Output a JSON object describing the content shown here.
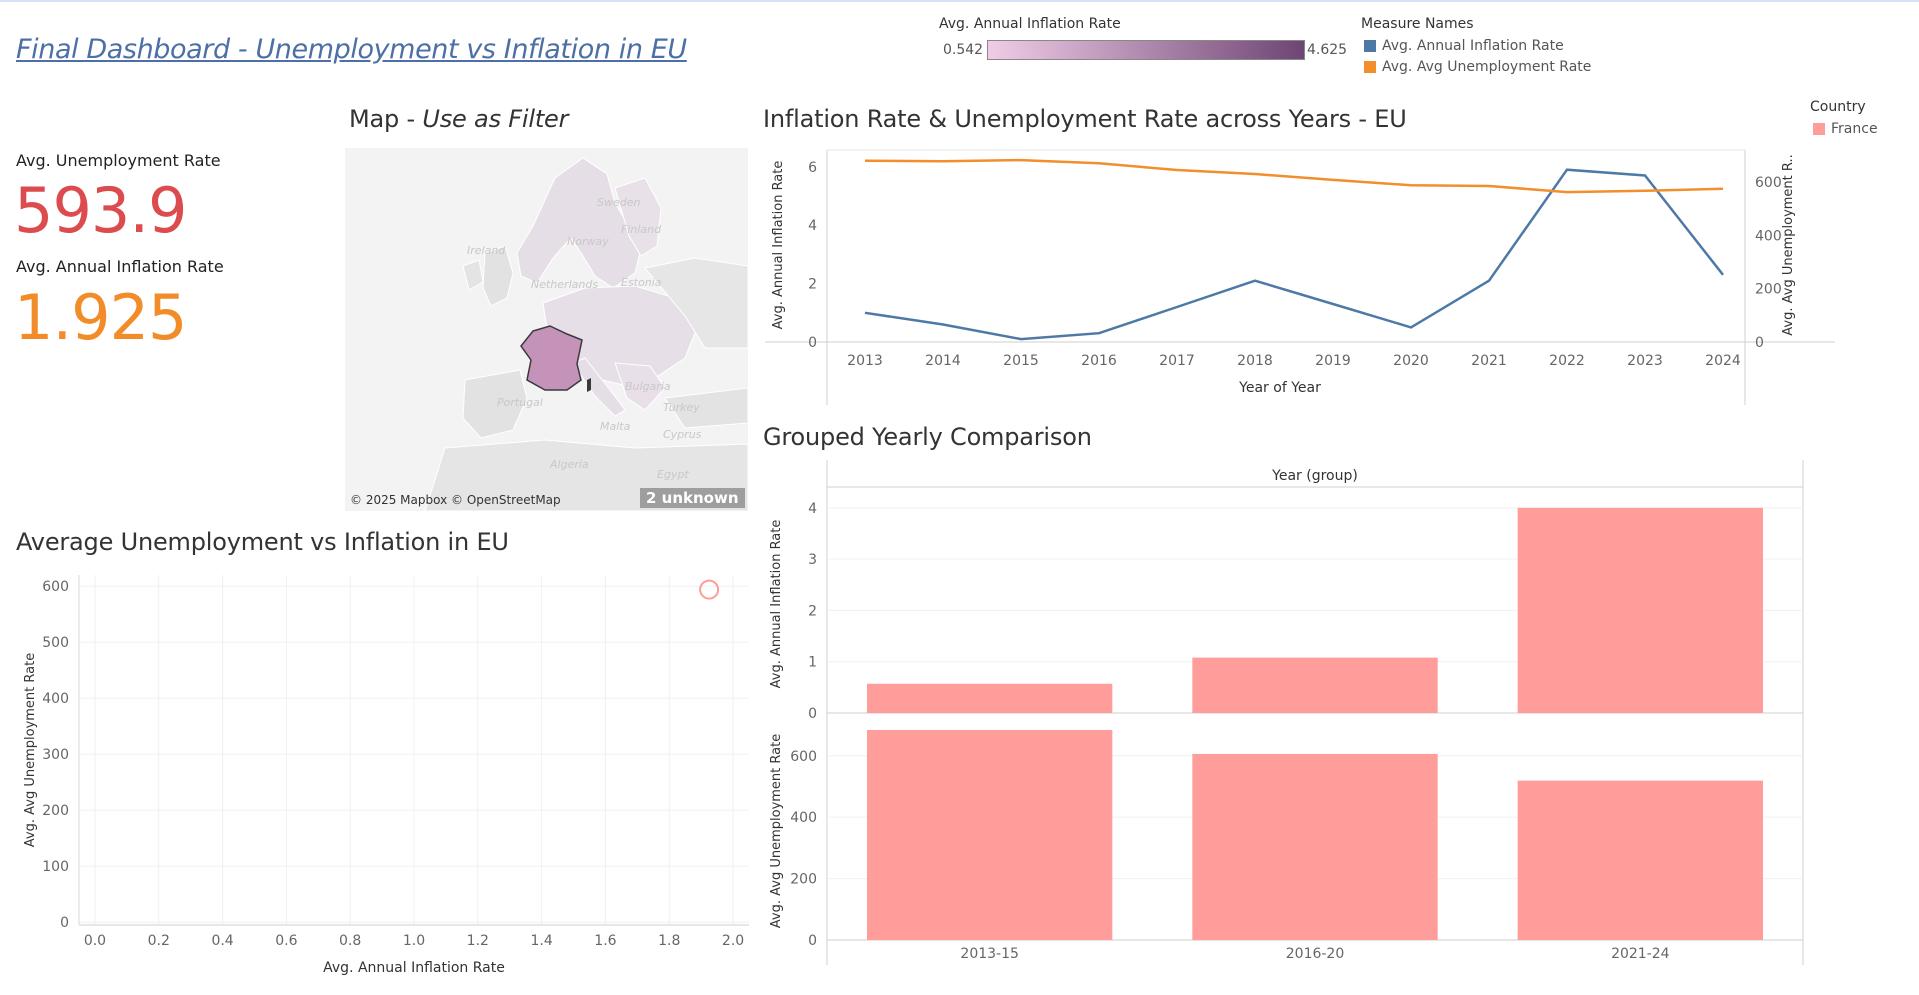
{
  "dashboard": {
    "title": "Final Dashboard - Unemployment vs Inflation in EU"
  },
  "kpis": {
    "unemployment": {
      "label": "Avg. Unemployment Rate",
      "value": "593.9",
      "color": "#dc4c4f"
    },
    "inflation": {
      "label": "Avg. Annual Inflation Rate",
      "value": "1.925",
      "color": "#f28c28"
    }
  },
  "color_legend": {
    "title": "Avg. Annual Inflation Rate",
    "min": "0.542",
    "max": "4.625"
  },
  "measure_legend": {
    "title": "Measure Names",
    "items": [
      {
        "label": "Avg. Annual Inflation Rate",
        "color": "#4e79a7"
      },
      {
        "label": "Avg. Avg Unemployment Rate",
        "color": "#f28e2b"
      }
    ]
  },
  "country_legend": {
    "title": "Country",
    "items": [
      {
        "label": "France",
        "color": "#ff9d9a"
      }
    ]
  },
  "map": {
    "title": "Map",
    "subtitle": "Use as Filter",
    "attribution": "© 2025 Mapbox © OpenStreetMap",
    "unknown_badge": "2 unknown",
    "labels": [
      "Sweden",
      "Finland",
      "Norway",
      "Ireland",
      "Netherlands",
      "Estonia",
      "Portugal",
      "Bulgaria",
      "Turkey",
      "Malta",
      "Cyprus",
      "Algeria",
      "Egypt"
    ]
  },
  "chart_data": [
    {
      "type": "line",
      "title": "Inflation Rate & Unemployment Rate across Years - EU",
      "xlabel": "Year of Year",
      "ylabel_left": "Avg. Annual Inflation Rate",
      "ylabel_right": "Avg. Avg Unemployment R..",
      "x": [
        2013,
        2014,
        2015,
        2016,
        2017,
        2018,
        2019,
        2020,
        2021,
        2022,
        2023,
        2024
      ],
      "ylim_left": [
        0,
        6.3
      ],
      "yticks_left": [
        0,
        2,
        4,
        6
      ],
      "ylim_right": [
        0,
        690
      ],
      "yticks_right": [
        0,
        200,
        400,
        600
      ],
      "series": [
        {
          "name": "Avg. Annual Inflation Rate",
          "axis": "left",
          "color": "#4e79a7",
          "values": [
            1.0,
            0.6,
            0.1,
            0.3,
            1.2,
            2.1,
            1.3,
            0.5,
            2.1,
            5.9,
            5.7,
            2.3
          ]
        },
        {
          "name": "Avg. Avg Unemployment Rate",
          "axis": "right",
          "color": "#f28e2b",
          "values": [
            680,
            678,
            682,
            670,
            645,
            630,
            608,
            588,
            585,
            562,
            567,
            575
          ]
        }
      ],
      "grid": false
    },
    {
      "type": "bar",
      "title": "Grouped Yearly Comparison",
      "header": "Year (group)",
      "categories": [
        "2013-15",
        "2016-20",
        "2021-24"
      ],
      "color": "#ff9d9a",
      "panels": [
        {
          "ylabel": "Avg. Annual Inflation Rate",
          "ylim": [
            0,
            4.25
          ],
          "yticks": [
            0,
            1,
            2,
            3,
            4
          ],
          "values": [
            0.57,
            1.08,
            4.0
          ]
        },
        {
          "ylabel": "Avg. Avg Unemployment Rate",
          "ylim": [
            0,
            710
          ],
          "yticks": [
            0,
            200,
            400,
            600
          ],
          "values": [
            684,
            606,
            519
          ]
        }
      ]
    },
    {
      "type": "scatter",
      "title": "Average Unemployment vs Inflation in EU",
      "xlabel": "Avg. Annual Inflation Rate",
      "ylabel": "Avg. Avg Unemployment Rate",
      "xlim": [
        -0.05,
        2.05
      ],
      "xticks": [
        0.0,
        0.2,
        0.4,
        0.6,
        0.8,
        1.0,
        1.2,
        1.4,
        1.6,
        1.8,
        2.0
      ],
      "ylim": [
        -5,
        620
      ],
      "yticks": [
        0,
        100,
        200,
        300,
        400,
        500,
        600
      ],
      "points": [
        {
          "x": 1.925,
          "y": 593.9
        }
      ],
      "color": "#ff9d9a",
      "grid": true
    }
  ]
}
